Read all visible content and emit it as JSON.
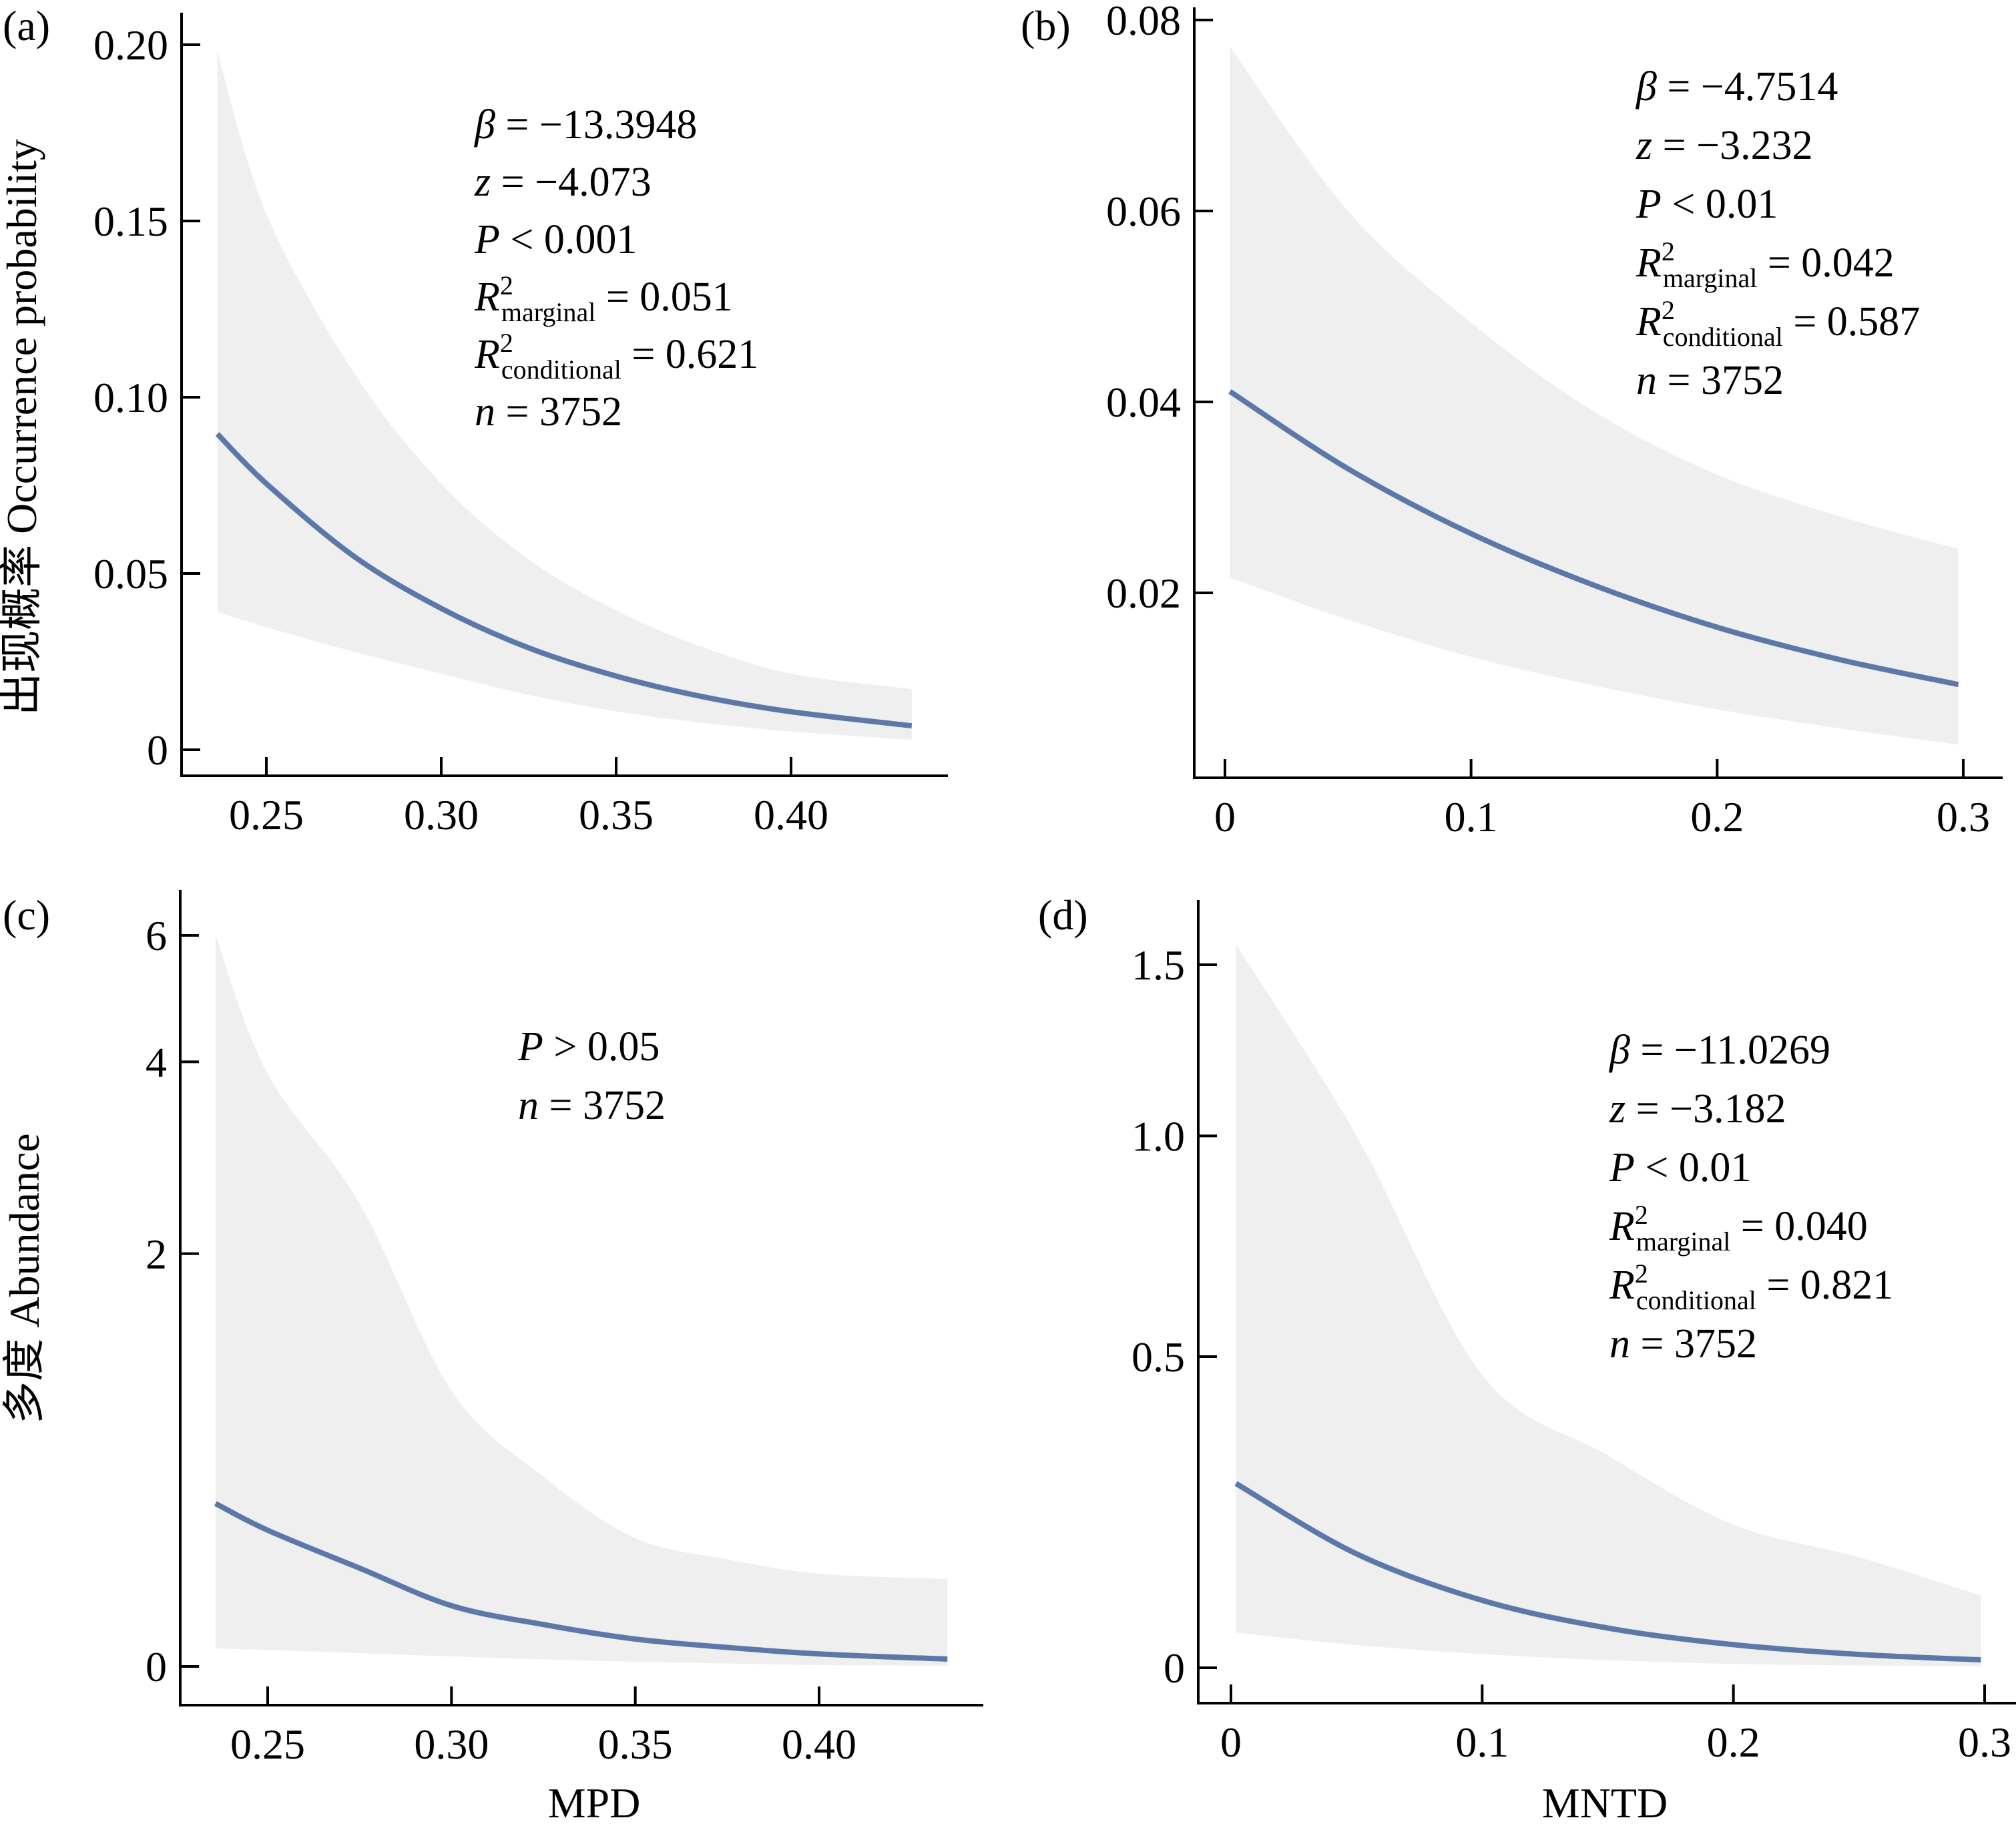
{
  "figure": {
    "colors": {
      "fit_line": "#5b78a8",
      "ci_band": "#efefef",
      "axis": "#000000",
      "background": "#ffffff"
    }
  },
  "chart_data": [
    {
      "id": "a",
      "type": "line",
      "panel_label": "(a)",
      "title": "",
      "xlabel": "",
      "ylabel": "出现概率 Occurrence probability",
      "y_scale": "linear",
      "xlim": [
        0.225,
        0.46
      ],
      "ylim": [
        0,
        0.2
      ],
      "x_ticks": [
        0.25,
        0.3,
        0.35,
        0.4
      ],
      "x_tick_labels": [
        "0.25",
        "0.30",
        "0.35",
        "0.40"
      ],
      "y_ticks": [
        0,
        0.05,
        0.1,
        0.15,
        0.2
      ],
      "y_tick_labels": [
        "0",
        "0.05",
        "0.10",
        "0.15",
        "0.20"
      ],
      "grid": false,
      "series": [
        {
          "name": "fitted",
          "x": [
            0.236,
            0.25,
            0.275,
            0.3,
            0.325,
            0.35,
            0.375,
            0.4,
            0.4345
          ],
          "y": [
            0.0896,
            0.0755,
            0.0549,
            0.0401,
            0.0289,
            0.0209,
            0.015,
            0.0108,
            0.0068
          ],
          "lower": [
            0.0391,
            0.0348,
            0.0278,
            0.0216,
            0.0156,
            0.0109,
            0.0076,
            0.0052,
            0.0028
          ],
          "upper": [
            0.198,
            0.152,
            0.107,
            0.0755,
            0.054,
            0.0395,
            0.029,
            0.0216,
            0.0172
          ]
        }
      ],
      "annotations": [
        [
          {
            "t": "β",
            "it": true
          },
          {
            "t": " = −13.3948"
          }
        ],
        [
          {
            "t": "z",
            "it": true
          },
          {
            "t": " = −4.073"
          }
        ],
        [
          {
            "t": "P",
            "it": true
          },
          {
            "t": " < 0.001"
          }
        ],
        [
          {
            "t": "R",
            "it": true
          },
          {
            "t": "2",
            "sup": true
          },
          {
            "t": "marginal",
            "sub": true
          },
          {
            "t": " = 0.051"
          }
        ],
        [
          {
            "t": "R",
            "it": true
          },
          {
            "t": "2",
            "sup": true
          },
          {
            "t": "conditional",
            "sub": true
          },
          {
            "t": " = 0.621"
          }
        ],
        [
          {
            "t": "n",
            "it": true
          },
          {
            "t": " = 3752"
          }
        ]
      ]
    },
    {
      "id": "b",
      "type": "line",
      "panel_label": "(b)",
      "title": "",
      "xlabel": "",
      "ylabel": "",
      "y_scale": "linear",
      "xlim": [
        -0.013,
        0.315
      ],
      "ylim": [
        0,
        0.08
      ],
      "x_ticks": [
        0,
        0.1,
        0.2,
        0.3
      ],
      "x_tick_labels": [
        "0",
        "0.1",
        "0.2",
        "0.3"
      ],
      "y_ticks": [
        0.02,
        0.04,
        0.06,
        0.08
      ],
      "y_tick_labels": [
        "0.02",
        "0.04",
        "0.06",
        "0.08"
      ],
      "grid": false,
      "series": [
        {
          "name": "fitted",
          "x": [
            0.002,
            0.05,
            0.1,
            0.15,
            0.2,
            0.25,
            0.298
          ],
          "y": [
            0.0411,
            0.033,
            0.0262,
            0.0208,
            0.0164,
            0.013,
            0.0104
          ],
          "lower": [
            0.0216,
            0.0172,
            0.0133,
            0.0103,
            0.0078,
            0.0058,
            0.0041
          ],
          "upper": [
            0.0772,
            0.06,
            0.0483,
            0.039,
            0.0324,
            0.028,
            0.0246
          ]
        }
      ],
      "annotations": [
        [
          {
            "t": "β",
            "it": true
          },
          {
            "t": " = −4.7514"
          }
        ],
        [
          {
            "t": "z",
            "it": true
          },
          {
            "t": " = −3.232"
          }
        ],
        [
          {
            "t": "P",
            "it": true
          },
          {
            "t": " < 0.01"
          }
        ],
        [
          {
            "t": "R",
            "it": true
          },
          {
            "t": "2",
            "sup": true
          },
          {
            "t": "marginal",
            "sub": true
          },
          {
            "t": " = 0.042"
          }
        ],
        [
          {
            "t": "R",
            "it": true
          },
          {
            "t": "2",
            "sup": true
          },
          {
            "t": "conditional",
            "sub": true
          },
          {
            "t": " = 0.587"
          }
        ],
        [
          {
            "t": "n",
            "it": true
          },
          {
            "t": " = 3752"
          }
        ]
      ]
    },
    {
      "id": "c",
      "type": "line",
      "panel_label": "(c)",
      "title": "",
      "xlabel": "MPD",
      "ylabel": "多度 Abundance",
      "y_scale": "log1p",
      "xlim": [
        0.225,
        0.46
      ],
      "ylim": [
        0,
        6.5
      ],
      "x_ticks": [
        0.25,
        0.3,
        0.35,
        0.4
      ],
      "x_tick_labels": [
        "0.25",
        "0.30",
        "0.35",
        "0.40"
      ],
      "y_ticks": [
        0,
        2,
        4,
        6
      ],
      "y_tick_labels": [
        "0",
        "2",
        "4",
        "6"
      ],
      "grid": false,
      "series": [
        {
          "name": "fitted",
          "x": [
            0.2358,
            0.25,
            0.275,
            0.3,
            0.325,
            0.35,
            0.375,
            0.4,
            0.4349
          ],
          "y": [
            0.543,
            0.437,
            0.299,
            0.1755,
            0.118,
            0.0756,
            0.052,
            0.034,
            0.0197
          ],
          "lower": [
            0.049,
            0.045,
            0.036,
            0.027,
            0.019,
            0.0125,
            0.008,
            0.0035,
            0.002
          ],
          "upper": [
            6.0,
            3.84,
            2.43,
            1.083,
            0.657,
            0.407,
            0.33,
            0.28,
            0.262
          ]
        }
      ],
      "annotations": [
        [
          {
            "t": "P",
            "it": true
          },
          {
            "t": " > 0.05"
          }
        ],
        [
          {
            "t": "n",
            "it": true
          },
          {
            "t": " = 3752"
          }
        ]
      ]
    },
    {
      "id": "d",
      "type": "line",
      "panel_label": "(d)",
      "title": "",
      "xlabel": "MNTD",
      "ylabel": "",
      "y_scale": "log1p",
      "xlim": [
        -0.013,
        0.32
      ],
      "ylim": [
        0,
        1.65
      ],
      "x_ticks": [
        0,
        0.1,
        0.2,
        0.3
      ],
      "x_tick_labels": [
        "0",
        "0.1",
        "0.2",
        "0.3"
      ],
      "y_ticks": [
        0,
        0.5,
        1.0,
        1.5
      ],
      "y_tick_labels": [
        "0",
        "0.5",
        "1.0",
        "1.5"
      ],
      "grid": false,
      "series": [
        {
          "name": "fitted",
          "x": [
            0.002,
            0.05,
            0.1,
            0.15,
            0.2,
            0.25,
            0.2985
          ],
          "y": [
            0.2715,
            0.16,
            0.0919,
            0.0531,
            0.0306,
            0.0176,
            0.0103
          ],
          "lower": [
            0.047,
            0.03,
            0.018,
            0.01,
            0.005,
            0.003,
            0.002
          ],
          "upper": [
            1.567,
            1.0,
            0.465,
            0.319,
            0.205,
            0.155,
            0.0986
          ]
        }
      ],
      "annotations": [
        [
          {
            "t": "β",
            "it": true
          },
          {
            "t": " = −11.0269"
          }
        ],
        [
          {
            "t": "z",
            "it": true
          },
          {
            "t": " = −3.182"
          }
        ],
        [
          {
            "t": "P",
            "it": true
          },
          {
            "t": " < 0.01"
          }
        ],
        [
          {
            "t": "R",
            "it": true
          },
          {
            "t": "2",
            "sup": true
          },
          {
            "t": "marginal",
            "sub": true
          },
          {
            "t": " = 0.040"
          }
        ],
        [
          {
            "t": "R",
            "it": true
          },
          {
            "t": "2",
            "sup": true
          },
          {
            "t": "conditional",
            "sub": true
          },
          {
            "t": " = 0.821"
          }
        ],
        [
          {
            "t": "n",
            "it": true
          },
          {
            "t": " = 3752"
          }
        ]
      ]
    }
  ]
}
